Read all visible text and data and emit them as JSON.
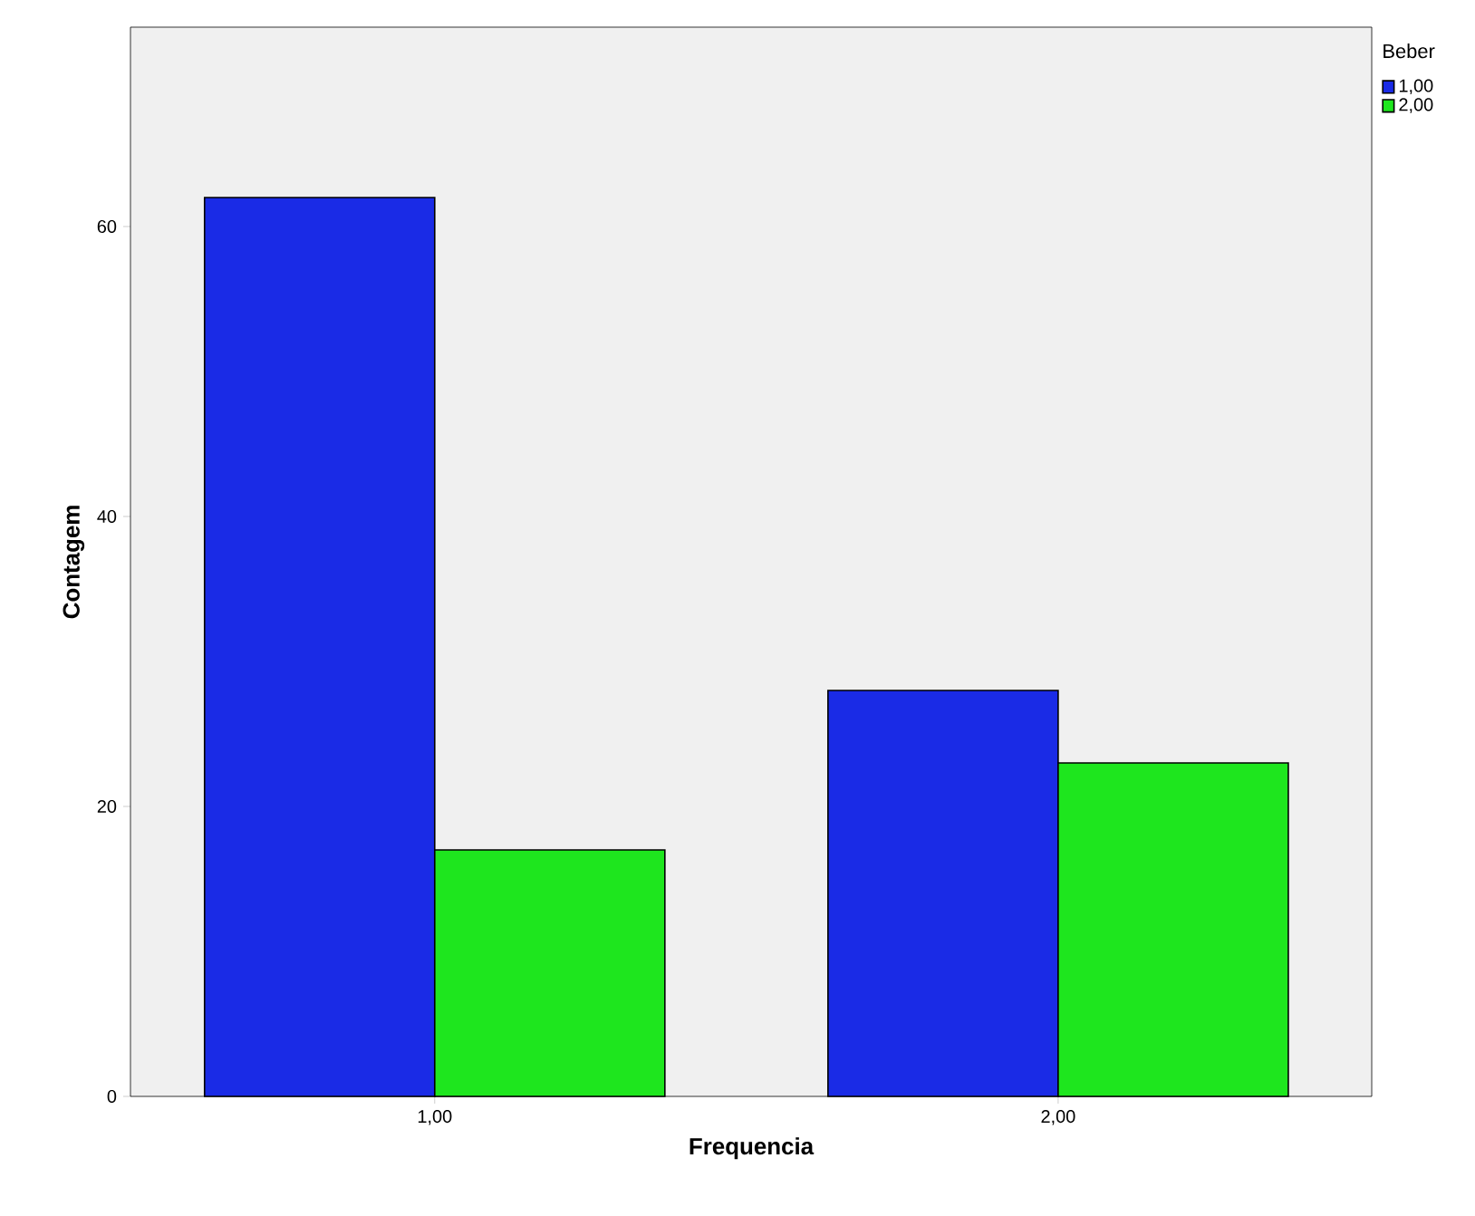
{
  "chart_data": {
    "type": "bar",
    "xlabel": "Frequencia",
    "ylabel": "Contagem",
    "legend_title": "Beber",
    "categories": [
      "1,00",
      "2,00"
    ],
    "series": [
      {
        "name": "1,00",
        "color": "#1a2be6",
        "values": [
          62,
          28
        ]
      },
      {
        "name": "2,00",
        "color": "#1ee61e",
        "values": [
          17,
          23
        ]
      }
    ],
    "ylim": [
      0,
      73.75
    ],
    "yticks": [
      0,
      20,
      40,
      60
    ],
    "grid": false,
    "legend": "top right"
  }
}
